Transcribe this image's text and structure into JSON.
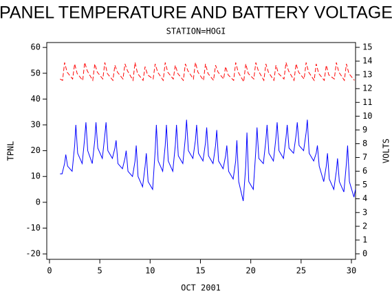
{
  "chart_data": {
    "type": "line",
    "title": "PANEL TEMPERATURE AND BATTERY VOLTAGE",
    "subtitle": "STATION=HOGI",
    "x_label": "OCT 2001",
    "y_label": "TPNL",
    "y2_label": "VOLTS",
    "xlim": [
      -0.27,
      30.41
    ],
    "xticks": [
      0,
      5,
      10,
      15,
      20,
      25,
      30
    ],
    "ylim": [
      -22.1,
      61.9
    ],
    "yticks": [
      -20,
      -10,
      0,
      10,
      20,
      30,
      40,
      50,
      60
    ],
    "y2lim": [
      -0.4,
      15.35
    ],
    "y2ticks": [
      0,
      1,
      2,
      3,
      4,
      5,
      6,
      7,
      8,
      9,
      10,
      11,
      12,
      13,
      14,
      15
    ],
    "series": [
      {
        "color": "#0000ff",
        "dashed": false,
        "x": [
          1.05,
          1.25,
          1.5,
          1.62,
          1.8,
          2.25,
          2.5,
          2.62,
          2.8,
          3.25,
          3.5,
          3.62,
          3.8,
          4.25,
          4.5,
          4.62,
          4.8,
          5.25,
          5.5,
          5.62,
          5.8,
          6.25,
          6.5,
          6.62,
          6.8,
          7.25,
          7.5,
          7.62,
          7.8,
          8.25,
          8.5,
          8.62,
          8.8,
          9.25,
          9.5,
          9.62,
          9.8,
          10.25,
          10.5,
          10.62,
          10.8,
          11.25,
          11.5,
          11.62,
          11.8,
          12.25,
          12.5,
          12.62,
          12.8,
          13.25,
          13.5,
          13.62,
          13.8,
          14.25,
          14.5,
          14.62,
          14.8,
          15.25,
          15.5,
          15.62,
          15.8,
          16.25,
          16.5,
          16.62,
          16.8,
          17.25,
          17.5,
          17.62,
          17.8,
          18.25,
          18.5,
          18.62,
          18.8,
          19.25,
          19.5,
          19.62,
          19.8,
          20.25,
          20.5,
          20.62,
          20.8,
          21.25,
          21.5,
          21.62,
          21.8,
          22.25,
          22.5,
          22.62,
          22.8,
          23.25,
          23.5,
          23.62,
          23.8,
          24.25,
          24.5,
          24.62,
          24.8,
          25.25,
          25.5,
          25.62,
          25.8,
          26.25,
          26.5,
          26.62,
          26.8,
          27.25,
          27.5,
          27.62,
          27.8,
          28.25,
          28.5,
          28.62,
          28.8,
          29.25,
          29.5,
          29.62,
          29.8,
          30.25,
          30.4
        ],
        "values": [
          11,
          11,
          15,
          18.5,
          14,
          12,
          22,
          30,
          19,
          15,
          25,
          31,
          20,
          15,
          24,
          31,
          21,
          17,
          26,
          31,
          20,
          17,
          21,
          24,
          15,
          13,
          17,
          20,
          12,
          10,
          16,
          22,
          10,
          6,
          14,
          19,
          8,
          5,
          20,
          30,
          16,
          12,
          22,
          30,
          16,
          12,
          22,
          30,
          18,
          15,
          25,
          32,
          20,
          17,
          24,
          30,
          19,
          16,
          23,
          29,
          18,
          15,
          22,
          28,
          16,
          13,
          18,
          22,
          12,
          9,
          16,
          24,
          8,
          0.5,
          14,
          27,
          8,
          5,
          20,
          29,
          17,
          15,
          24,
          30,
          19,
          16,
          25,
          31,
          20,
          17,
          25,
          30,
          21,
          19,
          26,
          31,
          22,
          20,
          27,
          32,
          19,
          16,
          19,
          22,
          14,
          8,
          14,
          19,
          9,
          5,
          12,
          17,
          8,
          4,
          15,
          22,
          8,
          2,
          5
        ]
      },
      {
        "color": "#ff0000",
        "dashed": true,
        "axis": "y2",
        "x": [
          1.05,
          1.3,
          1.5,
          1.75,
          2.3,
          2.5,
          2.75,
          3.3,
          3.5,
          3.75,
          4.3,
          4.5,
          4.75,
          5.3,
          5.5,
          5.75,
          6.3,
          6.5,
          6.75,
          7.3,
          7.5,
          7.75,
          8.3,
          8.5,
          8.75,
          9.3,
          9.5,
          9.75,
          10.3,
          10.5,
          10.75,
          11.3,
          11.5,
          11.75,
          12.3,
          12.5,
          12.75,
          13.3,
          13.5,
          13.75,
          14.3,
          14.5,
          14.75,
          15.3,
          15.5,
          15.75,
          16.3,
          16.5,
          16.75,
          17.3,
          17.5,
          17.75,
          18.3,
          18.5,
          18.75,
          19.3,
          19.5,
          19.75,
          20.3,
          20.5,
          20.75,
          21.3,
          21.5,
          21.75,
          22.3,
          22.5,
          22.75,
          23.3,
          23.5,
          23.75,
          24.3,
          24.5,
          24.75,
          25.3,
          25.5,
          25.75,
          26.3,
          26.5,
          26.75,
          27.3,
          27.5,
          27.75,
          28.3,
          28.5,
          28.75,
          29.3,
          29.5,
          29.75,
          30.3
        ],
        "values": [
          12.7,
          12.6,
          13.9,
          13.2,
          12.7,
          13.8,
          13.1,
          12.6,
          13.9,
          13.3,
          12.6,
          13.8,
          13.2,
          12.7,
          13.9,
          13.1,
          12.6,
          13.7,
          13.2,
          12.7,
          13.8,
          13.3,
          12.6,
          13.9,
          13.1,
          12.6,
          13.6,
          13.0,
          12.7,
          13.8,
          13.2,
          12.6,
          13.9,
          13.2,
          12.7,
          13.7,
          13.1,
          12.6,
          13.8,
          13.3,
          12.7,
          13.9,
          13.2,
          12.6,
          13.8,
          13.1,
          12.6,
          13.7,
          13.2,
          12.7,
          13.6,
          13.0,
          12.6,
          13.9,
          13.2,
          12.5,
          13.8,
          13.1,
          12.7,
          13.9,
          13.3,
          12.6,
          13.8,
          13.2,
          12.6,
          13.7,
          13.1,
          12.7,
          13.9,
          13.3,
          12.6,
          13.8,
          13.2,
          12.7,
          13.9,
          13.2,
          12.6,
          13.8,
          13.1,
          12.6,
          13.7,
          13.0,
          12.7,
          13.9,
          13.2,
          12.6,
          13.8,
          13.1,
          12.6
        ]
      }
    ]
  }
}
